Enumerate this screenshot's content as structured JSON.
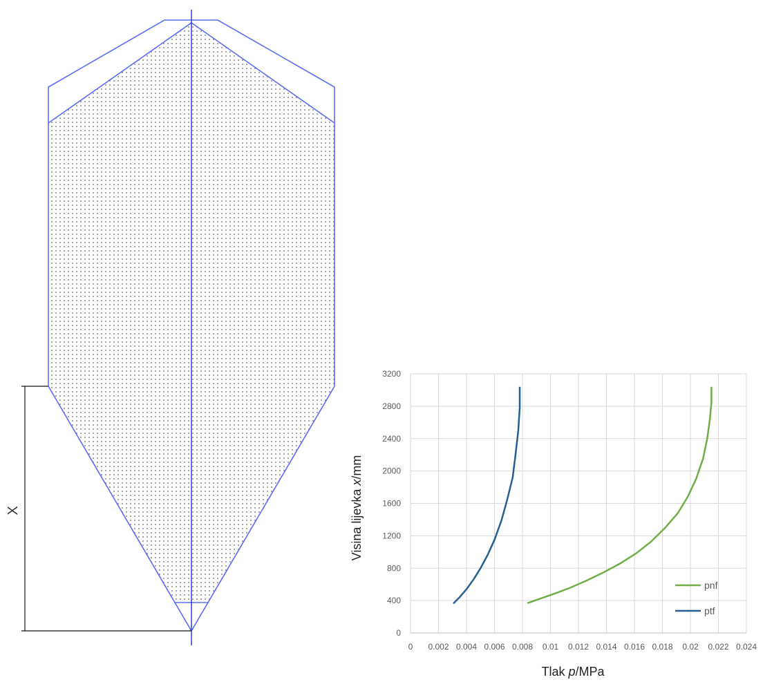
{
  "diagram": {
    "dimension_label": "X",
    "colors": {
      "outline": "#5b6cf5",
      "axis": "#1f2fd0",
      "dimension": "#111111",
      "fill_dots": "#222222"
    }
  },
  "chart_data": {
    "type": "line",
    "title": "",
    "xlabel_main": "Tlak ",
    "xlabel_var": "p",
    "xlabel_unit": "/MPa",
    "ylabel_main": "Visina lijevka ",
    "ylabel_var": "x",
    "ylabel_unit": "/mm",
    "xlim": [
      0,
      0.024
    ],
    "ylim": [
      0,
      3200
    ],
    "x_ticks": [
      "0",
      "0.002",
      "0.004",
      "0.006",
      "0.008",
      "0.01",
      "0.012",
      "0.014",
      "0.016",
      "0.018",
      "0.02",
      "0.022",
      "0.024"
    ],
    "y_ticks": [
      "0",
      "400",
      "800",
      "1200",
      "1600",
      "2000",
      "2400",
      "2800",
      "3200"
    ],
    "grid": true,
    "legend_position": "bottom-right",
    "series": [
      {
        "name": "pnf",
        "color": "#70ad47",
        "x": [
          0.0084,
          0.0092,
          0.0102,
          0.0113,
          0.0125,
          0.0137,
          0.0149,
          0.0161,
          0.0172,
          0.0182,
          0.0191,
          0.0198,
          0.0204,
          0.0209,
          0.0212,
          0.0214,
          0.0215,
          0.0215
        ],
        "y": [
          370,
          420,
          480,
          550,
          640,
          740,
          850,
          980,
          1130,
          1300,
          1480,
          1680,
          1900,
          2150,
          2400,
          2650,
          2850,
          3030
        ]
      },
      {
        "name": "ptf",
        "color": "#255e91",
        "x": [
          0.0031,
          0.0035,
          0.004,
          0.0045,
          0.005,
          0.0055,
          0.006,
          0.0065,
          0.0069,
          0.0073,
          0.0075,
          0.0077,
          0.0078,
          0.0078
        ],
        "y": [
          370,
          440,
          540,
          660,
          800,
          960,
          1150,
          1390,
          1640,
          1920,
          2200,
          2500,
          2780,
          3030
        ]
      }
    ]
  }
}
